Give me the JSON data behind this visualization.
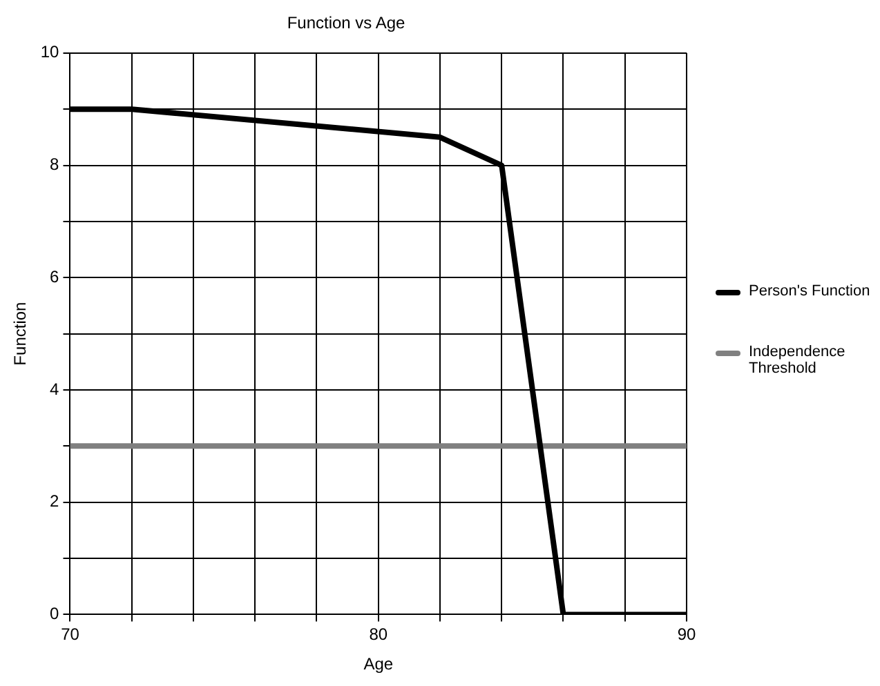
{
  "chart_data": {
    "type": "line",
    "title": "Function vs Age",
    "xlabel": "Age",
    "ylabel": "Function",
    "x": [
      70,
      72,
      82,
      84,
      86,
      90
    ],
    "series": [
      {
        "name": "Person's Function",
        "color": "#000000",
        "values": [
          9,
          9,
          8.5,
          8,
          0,
          0
        ]
      },
      {
        "name": "Independence Threshold",
        "color": "#808080",
        "values": [
          3,
          3,
          3,
          3,
          3,
          3
        ]
      }
    ],
    "xlim": [
      70,
      90
    ],
    "xticks": [
      70,
      {
        "value": 72,
        "label": null
      },
      {
        "value": 74,
        "label": null
      },
      {
        "value": 76,
        "label": null
      },
      {
        "value": 78,
        "label": null
      },
      80,
      {
        "value": 82,
        "label": null
      },
      {
        "value": 84,
        "label": null
      },
      {
        "value": 86,
        "label": null
      },
      {
        "value": 88,
        "label": null
      },
      90
    ],
    "ylim": [
      0,
      10
    ],
    "yticks": [
      0,
      {
        "value": 1,
        "label": null
      },
      2,
      {
        "value": 3,
        "label": null
      },
      4,
      {
        "value": 5,
        "label": null
      },
      6,
      {
        "value": 7,
        "label": null
      },
      8,
      {
        "value": 9,
        "label": null
      },
      10
    ],
    "grid": true,
    "legend": "right",
    "marker": "none",
    "line_style": "solid"
  }
}
